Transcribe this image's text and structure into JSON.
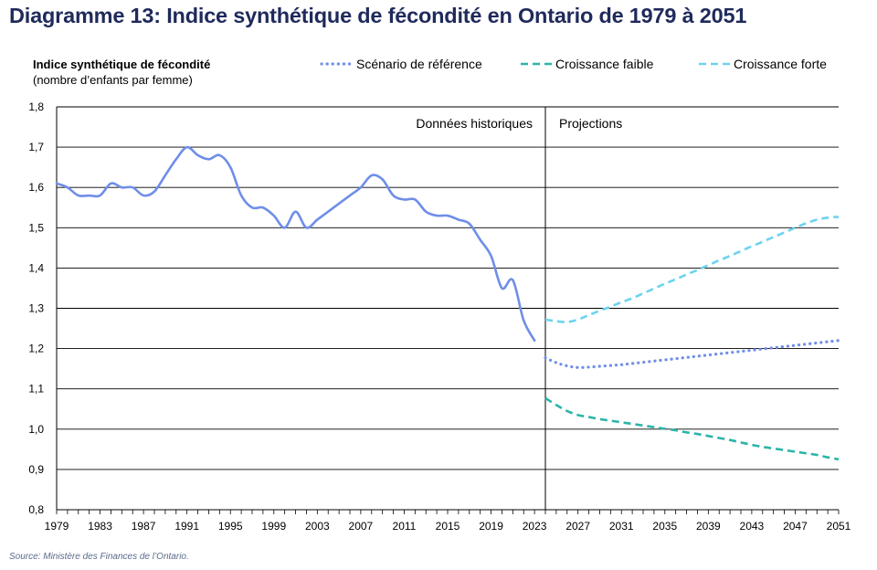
{
  "title": "Diagramme 13: Indice synthétique de fécondité en Ontario de 1979 à 2051",
  "source": "Source: Ministère des Finances de l’Ontario.",
  "colors": {
    "historical": "#6f8ee8",
    "reference": "#6f8ee8",
    "low": "#2ab5a8",
    "high": "#6cd3ef",
    "grid": "#000000",
    "title": "#1f2a5c"
  },
  "chart_data": {
    "type": "line",
    "title": "Indice synthétique de fécondité en Ontario de 1979 à 2051",
    "ylabel": "Indice synthétique de fécondité",
    "ylabel_sub": "(nombre d’enfants par femme)",
    "xlabel": "",
    "ylim": [
      0.8,
      1.8
    ],
    "xlim": [
      1979,
      2051
    ],
    "y_ticks": [
      0.8,
      0.9,
      1.0,
      1.1,
      1.2,
      1.3,
      1.4,
      1.5,
      1.6,
      1.7,
      1.8
    ],
    "y_tick_labels": [
      "0,8",
      "0,9",
      "1,0",
      "1,1",
      "1,2",
      "1,3",
      "1,4",
      "1,5",
      "1,6",
      "1,7",
      "1,8"
    ],
    "x_ticks": [
      1979,
      1983,
      1987,
      1991,
      1995,
      1999,
      2003,
      2007,
      2011,
      2015,
      2019,
      2023,
      2027,
      2031,
      2035,
      2039,
      2043,
      2047,
      2051
    ],
    "x_tick_labels": [
      "1979",
      "1983",
      "1987",
      "1991",
      "1995",
      "1999",
      "2003",
      "2007",
      "2011",
      "2015",
      "2019",
      "2023",
      "2027",
      "2031",
      "2035",
      "2039",
      "2043",
      "2047",
      "2051"
    ],
    "grid": true,
    "divider_year": 2024,
    "annotations": {
      "historical": "Données historiques",
      "projections": "Projections"
    },
    "legend": {
      "placement": "top-right",
      "items": [
        {
          "key": "reference",
          "label": "Scénario de référence",
          "style": "dotted"
        },
        {
          "key": "low",
          "label": "Croissance faible",
          "style": "dashed"
        },
        {
          "key": "high",
          "label": "Croissance forte",
          "style": "dashed"
        }
      ]
    },
    "series": [
      {
        "name": "Historique",
        "key": "historical",
        "style": "solid",
        "x": [
          1979,
          1980,
          1981,
          1982,
          1983,
          1984,
          1985,
          1986,
          1987,
          1988,
          1989,
          1990,
          1991,
          1992,
          1993,
          1994,
          1995,
          1996,
          1997,
          1998,
          1999,
          2000,
          2001,
          2002,
          2003,
          2004,
          2005,
          2006,
          2007,
          2008,
          2009,
          2010,
          2011,
          2012,
          2013,
          2014,
          2015,
          2016,
          2017,
          2018,
          2019,
          2020,
          2021,
          2022,
          2023
        ],
        "values": [
          1.61,
          1.6,
          1.58,
          1.58,
          1.58,
          1.61,
          1.6,
          1.6,
          1.58,
          1.59,
          1.63,
          1.67,
          1.7,
          1.68,
          1.67,
          1.68,
          1.65,
          1.58,
          1.55,
          1.55,
          1.53,
          1.5,
          1.54,
          1.5,
          1.52,
          1.54,
          1.56,
          1.58,
          1.6,
          1.63,
          1.62,
          1.58,
          1.57,
          1.57,
          1.54,
          1.53,
          1.53,
          1.52,
          1.51,
          1.47,
          1.43,
          1.35,
          1.37,
          1.27,
          1.22
        ]
      },
      {
        "name": "Scénario de référence",
        "key": "reference",
        "style": "dotted",
        "x": [
          2024,
          2025,
          2026,
          2027,
          2028,
          2029,
          2030,
          2031,
          2032,
          2033,
          2034,
          2035,
          2036,
          2037,
          2038,
          2039,
          2040,
          2041,
          2042,
          2043,
          2044,
          2045,
          2046,
          2047,
          2048,
          2049,
          2050,
          2051
        ],
        "values": [
          1.177,
          1.165,
          1.157,
          1.153,
          1.154,
          1.156,
          1.158,
          1.16,
          1.163,
          1.166,
          1.169,
          1.172,
          1.175,
          1.178,
          1.181,
          1.184,
          1.187,
          1.19,
          1.193,
          1.196,
          1.199,
          1.202,
          1.205,
          1.208,
          1.211,
          1.214,
          1.217,
          1.22
        ]
      },
      {
        "name": "Croissance faible",
        "key": "low",
        "style": "dashed",
        "x": [
          2024,
          2025,
          2026,
          2027,
          2028,
          2029,
          2030,
          2031,
          2032,
          2033,
          2034,
          2035,
          2036,
          2037,
          2038,
          2039,
          2040,
          2041,
          2042,
          2043,
          2044,
          2045,
          2046,
          2047,
          2048,
          2049,
          2050,
          2051
        ],
        "values": [
          1.077,
          1.06,
          1.045,
          1.035,
          1.03,
          1.025,
          1.021,
          1.017,
          1.013,
          1.009,
          1.005,
          1.001,
          0.997,
          0.992,
          0.988,
          0.983,
          0.978,
          0.973,
          0.967,
          0.961,
          0.956,
          0.952,
          0.948,
          0.944,
          0.94,
          0.936,
          0.93,
          0.925
        ]
      },
      {
        "name": "Croissance forte",
        "key": "high",
        "style": "dashed",
        "x": [
          2024,
          2025,
          2026,
          2027,
          2028,
          2029,
          2030,
          2031,
          2032,
          2033,
          2034,
          2035,
          2036,
          2037,
          2038,
          2039,
          2040,
          2041,
          2042,
          2043,
          2044,
          2045,
          2046,
          2047,
          2048,
          2049,
          2050,
          2051
        ],
        "values": [
          1.272,
          1.268,
          1.266,
          1.272,
          1.283,
          1.294,
          1.304,
          1.315,
          1.325,
          1.337,
          1.349,
          1.361,
          1.372,
          1.384,
          1.395,
          1.407,
          1.419,
          1.43,
          1.442,
          1.454,
          1.465,
          1.477,
          1.488,
          1.5,
          1.511,
          1.52,
          1.525,
          1.527
        ]
      }
    ]
  }
}
